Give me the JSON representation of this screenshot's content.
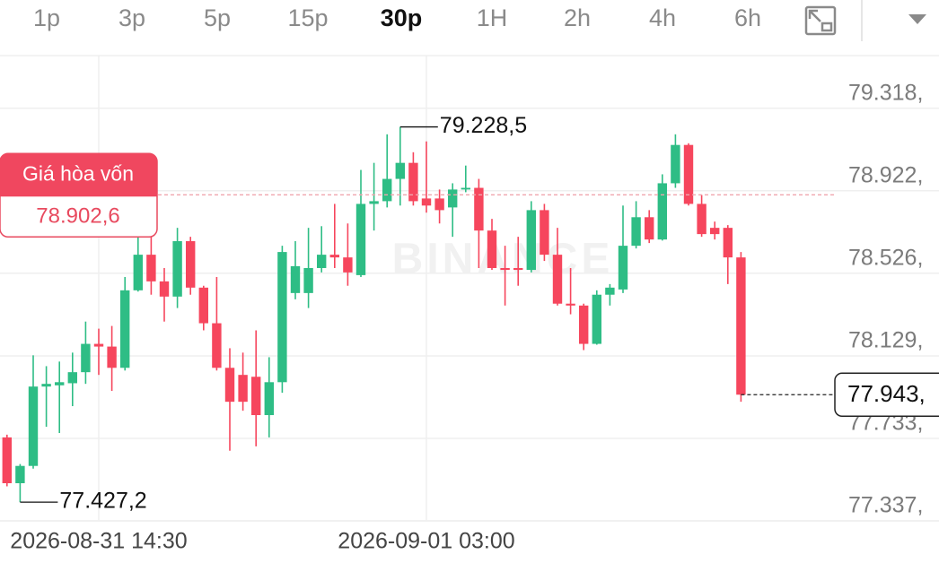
{
  "toolbar": {
    "intervals": [
      "1p",
      "3p",
      "5p",
      "15p",
      "30p",
      "1H",
      "2h",
      "4h",
      "6h"
    ],
    "active": 4
  },
  "chart_data": {
    "type": "candlestick",
    "watermark": "BINANCE",
    "categories": [
      null,
      null,
      null,
      null,
      null,
      null,
      null,
      "2026-08-31 14:30",
      null,
      null,
      null,
      null,
      null,
      null,
      null,
      null,
      null,
      null,
      null,
      null,
      null,
      null,
      null,
      null,
      null,
      null,
      null,
      null,
      null,
      null,
      null,
      null,
      "2026-09-01 03:00",
      null,
      null,
      null,
      null,
      null,
      null,
      null,
      null,
      null,
      null,
      null,
      null,
      null,
      null,
      null,
      null,
      null,
      null,
      null,
      null,
      null,
      null,
      null,
      null
    ],
    "open": [
      77738,
      77518,
      77601,
      77982,
      77988,
      77998,
      78051,
      78187,
      78174,
      78072,
      78444,
      78615,
      78487,
      78414,
      78680,
      78457,
      78286,
      78072,
      78038,
      78029,
      77845,
      78003,
      78431,
      78431,
      78551,
      78615,
      78602,
      78517,
      78859,
      78872,
      78979,
      79056,
      78885,
      78885,
      78842,
      78928,
      78936,
      78731,
      78551,
      78551,
      78542,
      78829,
      78615,
      78380,
      78371,
      78187,
      78423,
      78448,
      78658,
      78795,
      78688,
      78958,
      79142,
      78859,
      78744,
      78744,
      78602
    ],
    "high": [
      77751,
      77610,
      78132,
      78080,
      78102,
      78145,
      78294,
      78260,
      78273,
      78508,
      78701,
      78701,
      78551,
      78744,
      78701,
      78466,
      78508,
      78166,
      78145,
      78252,
      78123,
      78658,
      78680,
      78744,
      78752,
      78859,
      78765,
      79022,
      79056,
      79193,
      79228.5,
      79107,
      79159,
      78928,
      78958,
      79043,
      78979,
      78787,
      78658,
      78701,
      78872,
      78859,
      78744,
      78551,
      78380,
      78444,
      78474,
      78851,
      78872,
      78829,
      79001,
      79193,
      79150,
      78902,
      78774,
      78757,
      78628
    ],
    "low": [
      77503,
      77427.2,
      77588,
      77789,
      77759,
      77888,
      77995,
      78038,
      77961,
      78059,
      78438,
      78423,
      78294,
      78359,
      78423,
      78252,
      78059,
      77674,
      77866,
      77695,
      77738,
      77952,
      78401,
      78359,
      78530,
      78551,
      78466,
      78508,
      78731,
      78842,
      78851,
      78851,
      78817,
      78765,
      78701,
      78915,
      78551,
      78542,
      78371,
      78466,
      78530,
      78585,
      78371,
      78329,
      78157,
      78183,
      78371,
      78431,
      78645,
      78671,
      78683,
      78936,
      78851,
      78701,
      78688,
      78474,
      77909
    ],
    "close": [
      77518,
      77601,
      77982,
      77995,
      78003,
      78051,
      78187,
      78174,
      78072,
      78444,
      78615,
      78487,
      78414,
      78680,
      78457,
      78286,
      78072,
      77909,
      77909,
      77845,
      78003,
      78628,
      78560,
      78551,
      78615,
      78602,
      78530,
      78859,
      78872,
      78979,
      79056,
      78872,
      78851,
      78829,
      78928,
      78936,
      78731,
      78551,
      78542,
      78542,
      78829,
      78615,
      78380,
      78371,
      78187,
      78423,
      78457,
      78658,
      78795,
      78688,
      78958,
      79142,
      78859,
      78714,
      78714,
      78602,
      77943
    ],
    "up_color": "#2ebd85",
    "down_color": "#f6465d",
    "ylim": [
      77320,
      79571
    ],
    "yticks": [
      {
        "value": 79318,
        "label": "79.318,"
      },
      {
        "value": 78922,
        "label": "78.922,"
      },
      {
        "value": 78526,
        "label": "78.526,"
      },
      {
        "value": 78129,
        "label": "78.129,"
      },
      {
        "value": 77733,
        "label": "77.733,"
      },
      {
        "value": 77337,
        "label": "77.337,"
      }
    ],
    "grid": true,
    "high_marker": {
      "value": 79228.5,
      "label": "79.228,5"
    },
    "low_marker": {
      "value": 77427.2,
      "label": "77.427,2"
    },
    "breakeven": {
      "title": "Giá hòa vốn",
      "value": 78902.6,
      "label": "78.902,6"
    },
    "last_price": {
      "value": 77943,
      "label": "77.943,"
    }
  }
}
